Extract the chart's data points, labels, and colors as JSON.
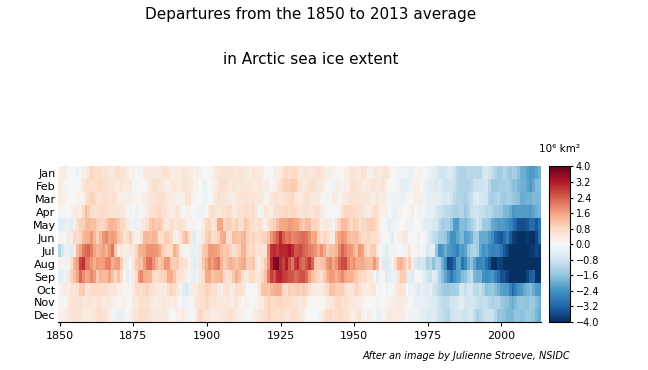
{
  "title_line1": "Departures from the 1850 to 2013 average",
  "title_line2": "in Arctic sea ice extent",
  "colorbar_label": "10⁶ km²",
  "colorbar_ticks": [
    4.0,
    3.2,
    2.4,
    1.6,
    0.8,
    0.0,
    -0.8,
    -1.6,
    -2.4,
    -3.2,
    -4.0
  ],
  "months": [
    "Jan",
    "Feb",
    "Mar",
    "Apr",
    "May",
    "Jun",
    "Jul",
    "Aug",
    "Sep",
    "Oct",
    "Nov",
    "Dec"
  ],
  "year_start": 1850,
  "year_end": 2013,
  "vmin": -4.0,
  "vmax": 4.0,
  "caption": "After an image by Julienne Stroeve, NSIDC",
  "figsize": [
    6.48,
    3.7
  ],
  "dpi": 100
}
